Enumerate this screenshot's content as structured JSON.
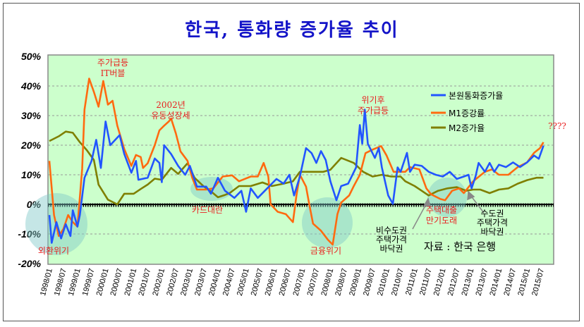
{
  "chart_data": {
    "type": "line",
    "title": "한국, 통화량 증가율 추이",
    "xlabel": "",
    "ylabel": "",
    "x_unit": "months since 1998/01",
    "xlim": [
      0,
      213
    ],
    "ylim": [
      -20,
      50
    ],
    "y_ticks": [
      "50%",
      "40%",
      "30%",
      "20%",
      "10%",
      "0%",
      "-10%",
      "-20%"
    ],
    "y_tick_values": [
      50,
      40,
      30,
      20,
      10,
      0,
      -10,
      -20
    ],
    "x_ticks": [
      "1998/01",
      "1998/07",
      "1999/01",
      "1999/07",
      "2000/01",
      "2000/07",
      "2001/01",
      "2001/07",
      "2002/01",
      "2002/07",
      "2003/01",
      "2003/07",
      "2004/01",
      "2004/07",
      "2005/01",
      "2005/07",
      "2006/01",
      "2006/07",
      "2007/01",
      "2007/07",
      "2008/01",
      "2008/07",
      "2009/01",
      "2009/07",
      "2010/01",
      "2010/07",
      "2011/01",
      "2011/07",
      "2012/01",
      "2012/07",
      "2013/01",
      "2013/07",
      "2014/01",
      "2014/07",
      "2015/01",
      "2015/07"
    ],
    "grid": true,
    "legend_position": "top-right",
    "series": [
      {
        "name": "본원통화증가율",
        "color": "#2255ff",
        "points": [
          [
            0,
            -3.6
          ],
          [
            1,
            -13
          ],
          [
            3,
            -6
          ],
          [
            5,
            -11.5
          ],
          [
            7,
            -6.7
          ],
          [
            9,
            -10.7
          ],
          [
            10,
            -2
          ],
          [
            12,
            -7.5
          ],
          [
            13,
            -3.6
          ],
          [
            15,
            9
          ],
          [
            18,
            14.7
          ],
          [
            20,
            21.8
          ],
          [
            22,
            12.3
          ],
          [
            24,
            28
          ],
          [
            26,
            20
          ],
          [
            30,
            23.4
          ],
          [
            32,
            17
          ],
          [
            35,
            10.7
          ],
          [
            37,
            14.7
          ],
          [
            38,
            8.3
          ],
          [
            42,
            9
          ],
          [
            45,
            15.5
          ],
          [
            47,
            14
          ],
          [
            48,
            7.5
          ],
          [
            49,
            20
          ],
          [
            52,
            17
          ],
          [
            55,
            13
          ],
          [
            58,
            10
          ],
          [
            60,
            13
          ],
          [
            63,
            6
          ],
          [
            67,
            6
          ],
          [
            69,
            3.6
          ],
          [
            72,
            9
          ],
          [
            75,
            4.6
          ],
          [
            79,
            2.2
          ],
          [
            82,
            4.6
          ],
          [
            84,
            -2.5
          ],
          [
            86,
            5.4
          ],
          [
            89,
            2.2
          ],
          [
            93,
            5.4
          ],
          [
            97,
            8.6
          ],
          [
            100,
            7
          ],
          [
            102.5,
            10
          ],
          [
            104.5,
            3
          ],
          [
            107,
            9.4
          ],
          [
            109.6,
            19
          ],
          [
            112,
            17.3
          ],
          [
            114,
            14
          ],
          [
            116,
            18
          ],
          [
            118,
            15
          ],
          [
            120,
            7.8
          ],
          [
            122.6,
            1.4
          ],
          [
            124.6,
            6.2
          ],
          [
            127.6,
            7
          ],
          [
            131,
            12.5
          ],
          [
            132.6,
            26.8
          ],
          [
            133.6,
            20.5
          ],
          [
            134.7,
            32
          ],
          [
            136,
            20.5
          ],
          [
            139,
            15.7
          ],
          [
            140.7,
            19
          ],
          [
            142,
            12.5
          ],
          [
            144.7,
            3
          ],
          [
            146.7,
            0.2
          ],
          [
            148.7,
            12.5
          ],
          [
            150,
            11
          ],
          [
            152.7,
            17.4
          ],
          [
            154,
            11
          ],
          [
            156,
            13.4
          ],
          [
            159,
            13
          ],
          [
            162,
            11
          ],
          [
            165,
            10
          ],
          [
            168,
            9.4
          ],
          [
            171,
            11
          ],
          [
            174,
            8.6
          ],
          [
            177,
            9.4
          ],
          [
            179,
            10
          ],
          [
            180.3,
            5.4
          ],
          [
            182,
            9.4
          ],
          [
            183.3,
            14
          ],
          [
            186,
            11
          ],
          [
            188,
            14
          ],
          [
            190,
            11
          ],
          [
            192,
            13.4
          ],
          [
            195,
            12.6
          ],
          [
            198,
            14.2
          ],
          [
            201,
            12.6
          ],
          [
            204,
            14.2
          ],
          [
            207,
            16.5
          ],
          [
            209,
            15.4
          ],
          [
            211,
            19.8
          ]
        ]
      },
      {
        "name": "M1증강률",
        "color": "#ff6a10",
        "points": [
          [
            0,
            14.7
          ],
          [
            2,
            -3.6
          ],
          [
            4,
            -10.7
          ],
          [
            6,
            -8.3
          ],
          [
            8,
            -3.6
          ],
          [
            10,
            -6
          ],
          [
            12,
            -7.5
          ],
          [
            14,
            12
          ],
          [
            15,
            32
          ],
          [
            17,
            42.5
          ],
          [
            19,
            38
          ],
          [
            21,
            33
          ],
          [
            23,
            41.7
          ],
          [
            25,
            33.7
          ],
          [
            27,
            35
          ],
          [
            29,
            26.6
          ],
          [
            32,
            18.7
          ],
          [
            35,
            13
          ],
          [
            37,
            16.7
          ],
          [
            39,
            16
          ],
          [
            40,
            12.3
          ],
          [
            42,
            13.9
          ],
          [
            45,
            20
          ],
          [
            47,
            25
          ],
          [
            49,
            26.6
          ],
          [
            51,
            28
          ],
          [
            52,
            29
          ],
          [
            54,
            24
          ],
          [
            56,
            17.9
          ],
          [
            59,
            14.7
          ],
          [
            61,
            9
          ],
          [
            63,
            5
          ],
          [
            67,
            5
          ],
          [
            70,
            5.4
          ],
          [
            74,
            9.4
          ],
          [
            78,
            9.8
          ],
          [
            81,
            7.8
          ],
          [
            86,
            9.4
          ],
          [
            89,
            9.4
          ],
          [
            91.5,
            14
          ],
          [
            93.5,
            9.4
          ],
          [
            94.5,
            0
          ],
          [
            97.5,
            -2.5
          ],
          [
            101,
            -3.3
          ],
          [
            104,
            -6
          ],
          [
            105.5,
            3
          ],
          [
            107,
            10
          ],
          [
            109.6,
            6
          ],
          [
            111,
            0
          ],
          [
            112.6,
            -6.5
          ],
          [
            116,
            -8.9
          ],
          [
            119,
            -12
          ],
          [
            121,
            -13.6
          ],
          [
            123,
            -3.3
          ],
          [
            124.6,
            0.6
          ],
          [
            128,
            3
          ],
          [
            130,
            6.2
          ],
          [
            132.6,
            10
          ],
          [
            135,
            17.3
          ],
          [
            138,
            18.5
          ],
          [
            141.7,
            19.7
          ],
          [
            144,
            16.5
          ],
          [
            147,
            11
          ],
          [
            150,
            11
          ],
          [
            152,
            11
          ],
          [
            154,
            12.6
          ],
          [
            158,
            11.8
          ],
          [
            161,
            5.4
          ],
          [
            163,
            3.4
          ],
          [
            167,
            1.8
          ],
          [
            169,
            1.4
          ],
          [
            172,
            4.6
          ],
          [
            175,
            5.4
          ],
          [
            177,
            3.8
          ],
          [
            181,
            7.8
          ],
          [
            186,
            11
          ],
          [
            189,
            11.8
          ],
          [
            192,
            10
          ],
          [
            196,
            10
          ],
          [
            200,
            12.6
          ],
          [
            204,
            14.2
          ],
          [
            207,
            17.4
          ],
          [
            209.5,
            19
          ],
          [
            211,
            21
          ]
        ]
      },
      {
        "name": "M2증가율",
        "color": "#7f7f00",
        "points": [
          [
            0,
            21.4
          ],
          [
            4,
            23
          ],
          [
            7,
            24.6
          ],
          [
            10,
            24.2
          ],
          [
            13,
            21
          ],
          [
            16,
            18.3
          ],
          [
            19,
            15
          ],
          [
            21,
            6.7
          ],
          [
            25,
            1.6
          ],
          [
            29,
            0
          ],
          [
            32,
            3.6
          ],
          [
            36,
            3.6
          ],
          [
            39,
            5.2
          ],
          [
            42,
            6.7
          ],
          [
            45,
            8.7
          ],
          [
            48,
            8.3
          ],
          [
            52,
            12.3
          ],
          [
            55,
            10.3
          ],
          [
            59,
            13.9
          ],
          [
            62,
            9
          ],
          [
            66,
            6
          ],
          [
            69,
            4.4
          ],
          [
            72,
            2.4
          ],
          [
            75,
            3.2
          ],
          [
            77,
            3.8
          ],
          [
            81,
            6.2
          ],
          [
            86,
            6.2
          ],
          [
            91,
            7.4
          ],
          [
            95,
            6.2
          ],
          [
            100,
            7
          ],
          [
            104,
            7.8
          ],
          [
            107,
            11
          ],
          [
            112,
            11
          ],
          [
            117,
            11
          ],
          [
            120,
            11.7
          ],
          [
            124.6,
            15.7
          ],
          [
            130,
            14
          ],
          [
            134,
            11
          ],
          [
            138,
            9.4
          ],
          [
            142,
            10
          ],
          [
            146,
            9.4
          ],
          [
            150,
            9.4
          ],
          [
            152,
            7.8
          ],
          [
            156,
            6.2
          ],
          [
            159,
            4.6
          ],
          [
            162,
            3
          ],
          [
            166,
            4.6
          ],
          [
            170,
            5.4
          ],
          [
            174,
            5.8
          ],
          [
            178,
            4.6
          ],
          [
            181,
            5
          ],
          [
            184,
            5
          ],
          [
            188,
            3.8
          ],
          [
            192,
            5
          ],
          [
            196,
            5.4
          ],
          [
            200,
            7
          ],
          [
            204,
            8.2
          ],
          [
            208,
            9
          ],
          [
            211,
            9
          ]
        ]
      }
    ],
    "annotations": {
      "it_bubble": [
        "주가급등",
        "IT버블"
      ],
      "liquidity_2002": [
        "2002년",
        "유동성장세"
      ],
      "card_crisis": "카드대란",
      "fx_crisis": "외환위기",
      "financial_crisis": "금융위기",
      "post_crisis": [
        "위기후",
        "주가급등"
      ],
      "question": "????",
      "mortgage_maturity": [
        "주택대출",
        "만기도래"
      ],
      "non_capital_bottom": [
        "비수도권",
        "주택가격",
        "바닥권"
      ],
      "capital_bottom": [
        "수도권",
        "주택가격",
        "바닥권"
      ],
      "source": "자료 : 한국 은행"
    }
  }
}
